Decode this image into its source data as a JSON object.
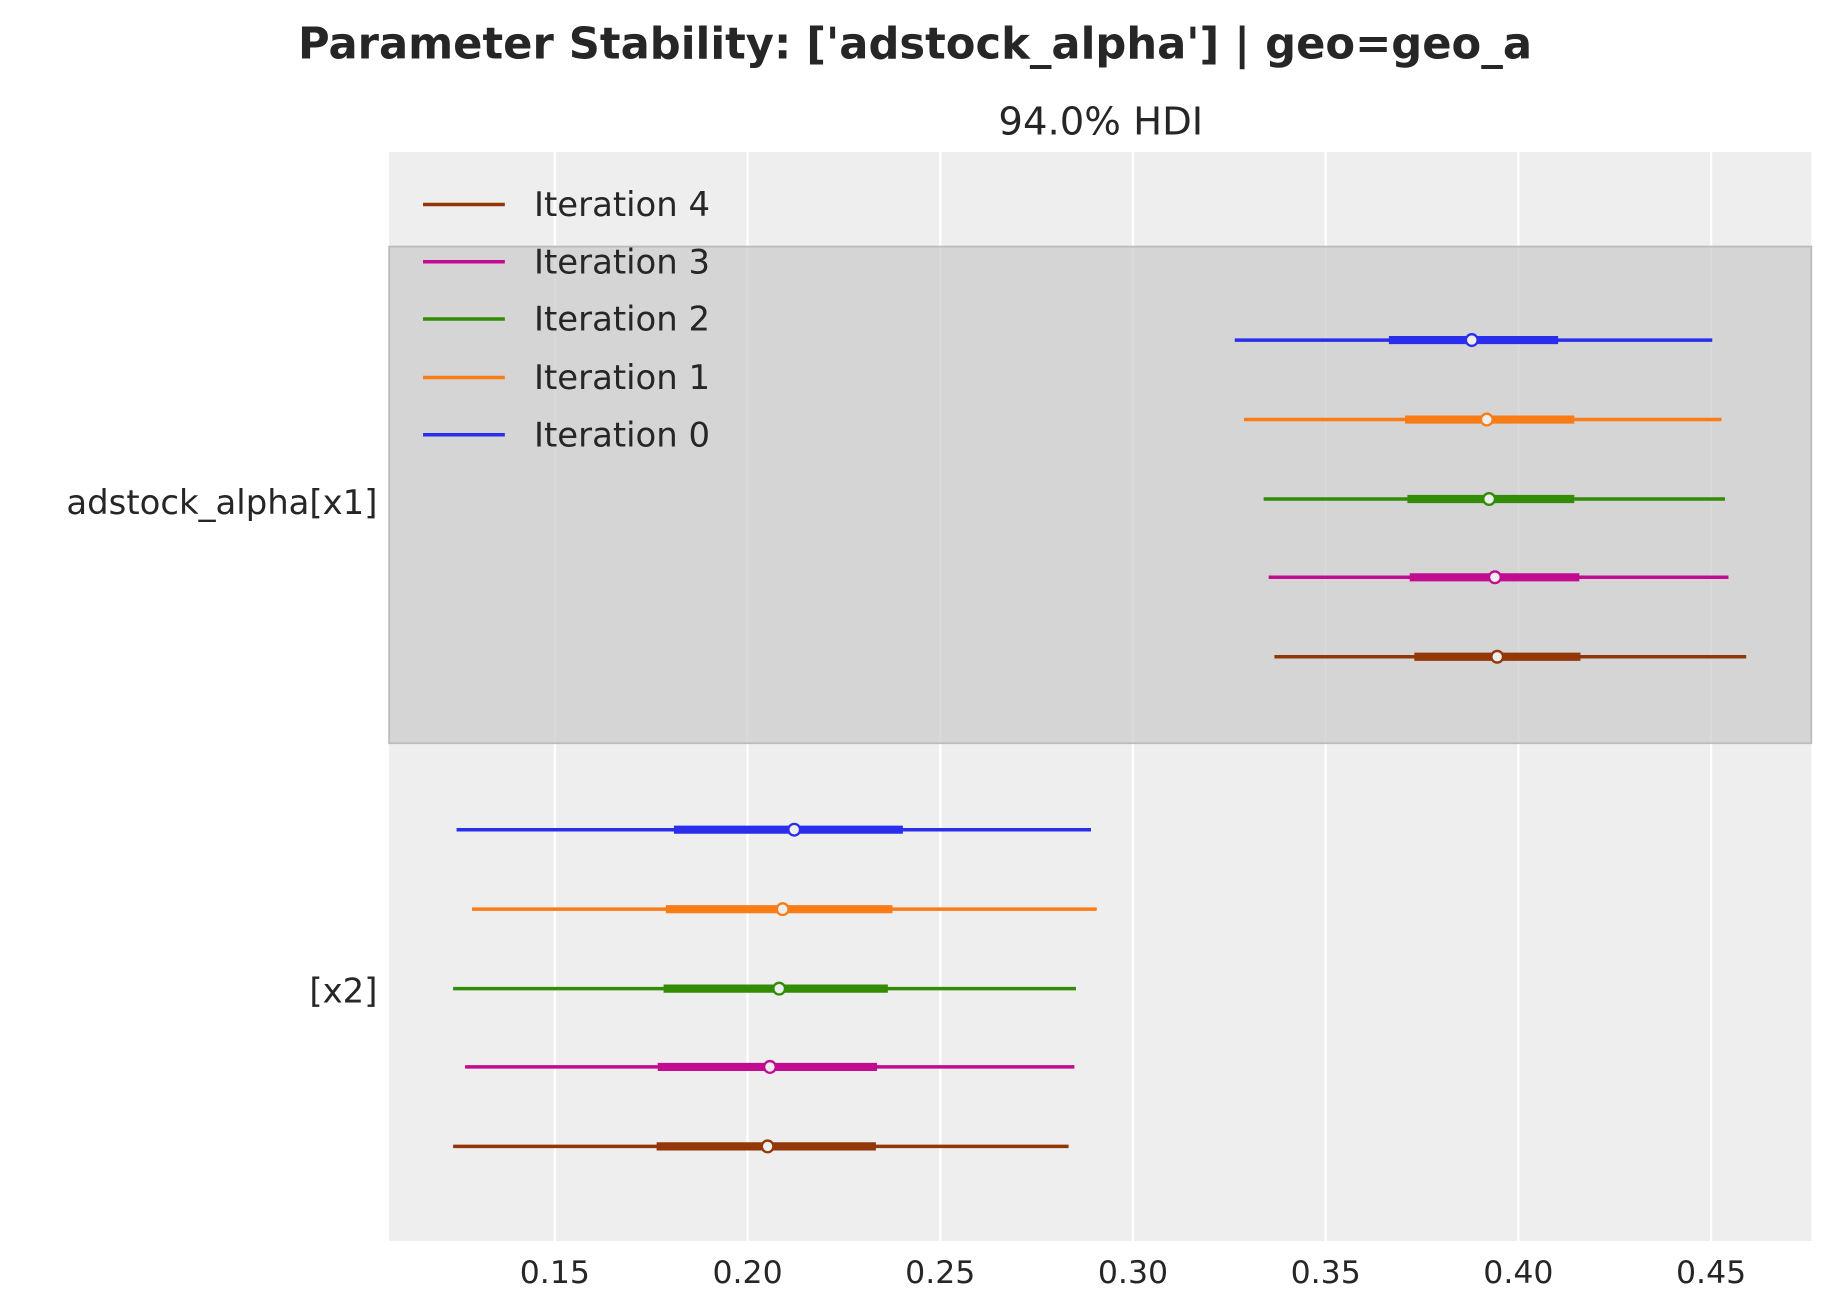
{
  "chart_data": {
    "type": "forest",
    "title": "Parameter Stability: ['adstock_alpha'] | geo=geo_a",
    "subtitle": "94.0% HDI",
    "xlim": [
      0.107,
      0.476
    ],
    "xticks": [
      "0.15",
      "0.20",
      "0.25",
      "0.30",
      "0.35",
      "0.40",
      "0.45"
    ],
    "xtick_values": [
      0.15,
      0.2,
      0.25,
      0.3,
      0.35,
      0.4,
      0.45
    ],
    "grid": true,
    "legend_position": "top-left",
    "parameters": [
      {
        "label": "adstock_alpha[x1]",
        "highlighted": true
      },
      {
        "label": "[x2]",
        "highlighted": false
      }
    ],
    "series": [
      {
        "name": "Iteration 4",
        "color": "#933708",
        "intervals": [
          {
            "hdi_low": 0.3367,
            "iqr_low": 0.373,
            "median": 0.3945,
            "iqr_high": 0.4161,
            "hdi_high": 0.4591
          },
          {
            "hdi_low": 0.1236,
            "iqr_low": 0.1764,
            "median": 0.2052,
            "iqr_high": 0.2333,
            "hdi_high": 0.2833
          }
        ]
      },
      {
        "name": "Iteration 3",
        "color": "#c10c90",
        "intervals": [
          {
            "hdi_low": 0.3352,
            "iqr_low": 0.3718,
            "median": 0.3939,
            "iqr_high": 0.4158,
            "hdi_high": 0.4545
          },
          {
            "hdi_low": 0.1267,
            "iqr_low": 0.1767,
            "median": 0.2058,
            "iqr_high": 0.2336,
            "hdi_high": 0.2848
          }
        ]
      },
      {
        "name": "Iteration 2",
        "color": "#328c06",
        "intervals": [
          {
            "hdi_low": 0.3339,
            "iqr_low": 0.3712,
            "median": 0.3924,
            "iqr_high": 0.4145,
            "hdi_high": 0.4536
          },
          {
            "hdi_low": 0.1236,
            "iqr_low": 0.1782,
            "median": 0.2082,
            "iqr_high": 0.2364,
            "hdi_high": 0.2852
          }
        ]
      },
      {
        "name": "Iteration 1",
        "color": "#fa7c17",
        "intervals": [
          {
            "hdi_low": 0.3288,
            "iqr_low": 0.3706,
            "median": 0.3918,
            "iqr_high": 0.4145,
            "hdi_high": 0.4527
          },
          {
            "hdi_low": 0.1285,
            "iqr_low": 0.1788,
            "median": 0.2091,
            "iqr_high": 0.2376,
            "hdi_high": 0.2906
          }
        ]
      },
      {
        "name": "Iteration 0",
        "color": "#2a2eec",
        "intervals": [
          {
            "hdi_low": 0.3264,
            "iqr_low": 0.3664,
            "median": 0.3879,
            "iqr_high": 0.4103,
            "hdi_high": 0.4503
          },
          {
            "hdi_low": 0.1245,
            "iqr_low": 0.1809,
            "median": 0.2121,
            "iqr_high": 0.2403,
            "hdi_high": 0.2891
          }
        ]
      }
    ]
  }
}
